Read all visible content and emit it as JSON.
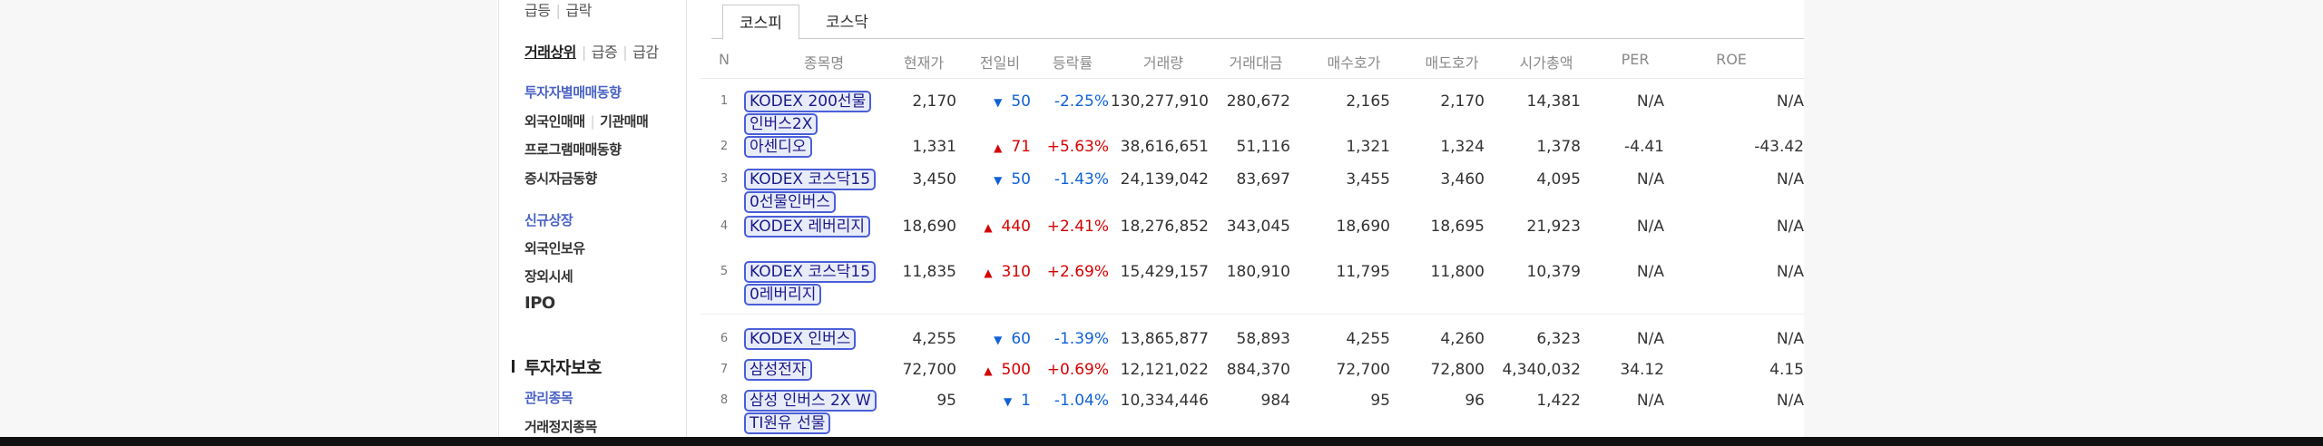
{
  "sidebar": {
    "row1": [
      "급등",
      "급락"
    ],
    "row2_active": "거래상위",
    "row2": [
      "급증",
      "급감"
    ],
    "investor_trend": "투자자별매매동향",
    "row4": [
      "외국인매매",
      "기관매매"
    ],
    "program": "프로그램매매동향",
    "funds": "증시자금동향",
    "new_listing": "신규상장",
    "foreign_holding": "외국인보유",
    "otc": "장외시세",
    "ipo": "IPO",
    "protection_title": "투자자보호",
    "managed": "관리종목",
    "suspended": "거래정지종목"
  },
  "tabs": [
    {
      "label": "코스피",
      "active": true
    },
    {
      "label": "코스닥",
      "active": false
    }
  ],
  "columns": [
    "N",
    "종목명",
    "현재가",
    "전일비",
    "등락률",
    "거래량",
    "거래대금",
    "매수호가",
    "매도호가",
    "시가총액",
    "PER",
    "ROE"
  ],
  "rows": [
    {
      "n": "1",
      "name": "KODEX 200선물인버스2X",
      "price": "2,170",
      "dir": "down",
      "change": "50",
      "rate": "-2.25%",
      "volume": "130,277,910",
      "amount": "280,672",
      "bid": "2,165",
      "ask": "2,170",
      "cap": "14,381",
      "per": "N/A",
      "roe": "N/A"
    },
    {
      "n": "2",
      "name": "아센디오",
      "price": "1,331",
      "dir": "up",
      "change": "71",
      "rate": "+5.63%",
      "volume": "38,616,651",
      "amount": "51,116",
      "bid": "1,321",
      "ask": "1,324",
      "cap": "1,378",
      "per": "-4.41",
      "roe": "-43.42"
    },
    {
      "n": "3",
      "name": "KODEX 코스닥150선물인버스",
      "price": "3,450",
      "dir": "down",
      "change": "50",
      "rate": "-1.43%",
      "volume": "24,139,042",
      "amount": "83,697",
      "bid": "3,455",
      "ask": "3,460",
      "cap": "4,095",
      "per": "N/A",
      "roe": "N/A"
    },
    {
      "n": "4",
      "name": "KODEX 레버리지",
      "price": "18,690",
      "dir": "up",
      "change": "440",
      "rate": "+2.41%",
      "volume": "18,276,852",
      "amount": "343,045",
      "bid": "18,690",
      "ask": "18,695",
      "cap": "21,923",
      "per": "N/A",
      "roe": "N/A"
    },
    {
      "n": "5",
      "name": "KODEX 코스닥150레버리지",
      "price": "11,835",
      "dir": "up",
      "change": "310",
      "rate": "+2.69%",
      "volume": "15,429,157",
      "amount": "180,910",
      "bid": "11,795",
      "ask": "11,800",
      "cap": "10,379",
      "per": "N/A",
      "roe": "N/A"
    },
    {
      "n": "6",
      "name": "KODEX 인버스",
      "price": "4,255",
      "dir": "down",
      "change": "60",
      "rate": "-1.39%",
      "volume": "13,865,877",
      "amount": "58,893",
      "bid": "4,255",
      "ask": "4,260",
      "cap": "6,323",
      "per": "N/A",
      "roe": "N/A"
    },
    {
      "n": "7",
      "name": "삼성전자",
      "price": "72,700",
      "dir": "up",
      "change": "500",
      "rate": "+0.69%",
      "volume": "12,121,022",
      "amount": "884,370",
      "bid": "72,700",
      "ask": "72,800",
      "cap": "4,340,032",
      "per": "34.12",
      "roe": "4.15"
    },
    {
      "n": "8",
      "name": "삼성 인버스 2X WTI원유 선물",
      "price": "95",
      "dir": "down",
      "change": "1",
      "rate": "-1.04%",
      "volume": "10,334,446",
      "amount": "984",
      "bid": "95",
      "ask": "96",
      "cap": "1,422",
      "per": "N/A",
      "roe": "N/A"
    }
  ],
  "arrows": {
    "up": "▲",
    "down": "▼"
  },
  "colors": {
    "up": "#d60000",
    "down": "#1061d8",
    "link": "#4a62c5",
    "highlight_outline": "#4a5fd8"
  }
}
